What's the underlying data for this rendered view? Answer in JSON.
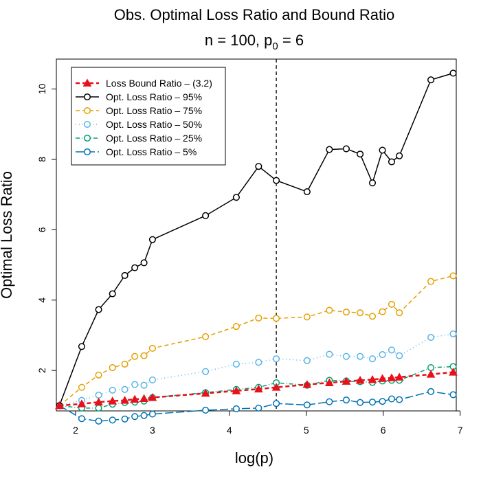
{
  "chart_data": {
    "type": "line",
    "title": "Obs. Optimal Loss Ratio and Bound Ratio",
    "subtitle_prefix": "n = 100, p",
    "subtitle_sub": "0",
    "subtitle_suffix": " = 6",
    "xlabel": "log(p)",
    "ylabel": "Optimal Loss Ratio",
    "xlim": [
      1.75,
      6.95
    ],
    "ylim": [
      0.85,
      10.85
    ],
    "xticks": [
      2,
      3,
      4,
      5,
      6,
      7
    ],
    "yticks": [
      2,
      4,
      6,
      8,
      10
    ],
    "grid": false,
    "legend_position": "top-left",
    "vline": {
      "x": 4.61,
      "style": "dashed",
      "color": "#000000"
    },
    "x": [
      1.79,
      2.08,
      2.3,
      2.48,
      2.64,
      2.77,
      2.89,
      3.0,
      3.69,
      4.09,
      4.38,
      4.61,
      5.01,
      5.3,
      5.52,
      5.7,
      5.86,
      5.99,
      6.11,
      6.21,
      6.62,
      6.91
    ],
    "series": [
      {
        "name": "Loss Bound Ratio – (3.2)",
        "color": "#e8101a",
        "marker": "triangle",
        "dash": "6,4",
        "width": 2.5,
        "values": [
          1.0,
          1.05,
          1.1,
          1.13,
          1.15,
          1.18,
          1.2,
          1.23,
          1.35,
          1.42,
          1.47,
          1.52,
          1.6,
          1.65,
          1.69,
          1.72,
          1.74,
          1.77,
          1.79,
          1.81,
          1.89,
          1.95
        ]
      },
      {
        "name": "Opt. Loss Ratio – 95%",
        "color": "#000000",
        "marker": "circle",
        "dash": "",
        "width": 1.5,
        "values": [
          1.0,
          2.68,
          3.73,
          4.18,
          4.7,
          4.92,
          5.06,
          5.72,
          6.4,
          6.92,
          7.8,
          7.4,
          7.08,
          8.28,
          8.3,
          8.15,
          7.33,
          8.26,
          7.93,
          8.1,
          10.26,
          10.45
        ]
      },
      {
        "name": "Opt. Loss Ratio – 75%",
        "color": "#e69f00",
        "marker": "circle",
        "dash": "6,4",
        "width": 1.5,
        "values": [
          1.0,
          1.52,
          1.87,
          2.08,
          2.18,
          2.4,
          2.42,
          2.63,
          2.96,
          3.25,
          3.49,
          3.48,
          3.52,
          3.71,
          3.66,
          3.64,
          3.54,
          3.67,
          3.88,
          3.64,
          4.53,
          4.69
        ]
      },
      {
        "name": "Opt. Loss Ratio – 50%",
        "color": "#56b4e9",
        "marker": "circle",
        "dash": "1,4",
        "width": 1.5,
        "values": [
          1.0,
          1.15,
          1.3,
          1.44,
          1.46,
          1.6,
          1.58,
          1.73,
          1.97,
          2.18,
          2.23,
          2.33,
          2.28,
          2.46,
          2.4,
          2.4,
          2.33,
          2.45,
          2.58,
          2.42,
          2.94,
          3.04
        ]
      },
      {
        "name": "Opt. Loss Ratio – 25%",
        "color": "#009e73",
        "marker": "circle",
        "dash": "6,3,1,3",
        "width": 1.5,
        "values": [
          1.0,
          0.93,
          0.93,
          1.04,
          1.09,
          1.1,
          1.13,
          1.23,
          1.37,
          1.46,
          1.52,
          1.65,
          1.58,
          1.72,
          1.7,
          1.68,
          1.66,
          1.7,
          1.72,
          1.72,
          2.08,
          2.11
        ]
      },
      {
        "name": "Opt. Loss Ratio – 5%",
        "color": "#0072b2",
        "marker": "circle",
        "dash": "12,4",
        "width": 1.5,
        "values": [
          1.0,
          0.63,
          0.56,
          0.59,
          0.62,
          0.69,
          0.72,
          0.76,
          0.87,
          0.91,
          0.93,
          1.06,
          1.02,
          1.11,
          1.16,
          1.09,
          1.1,
          1.12,
          1.19,
          1.17,
          1.4,
          1.31
        ]
      }
    ]
  }
}
